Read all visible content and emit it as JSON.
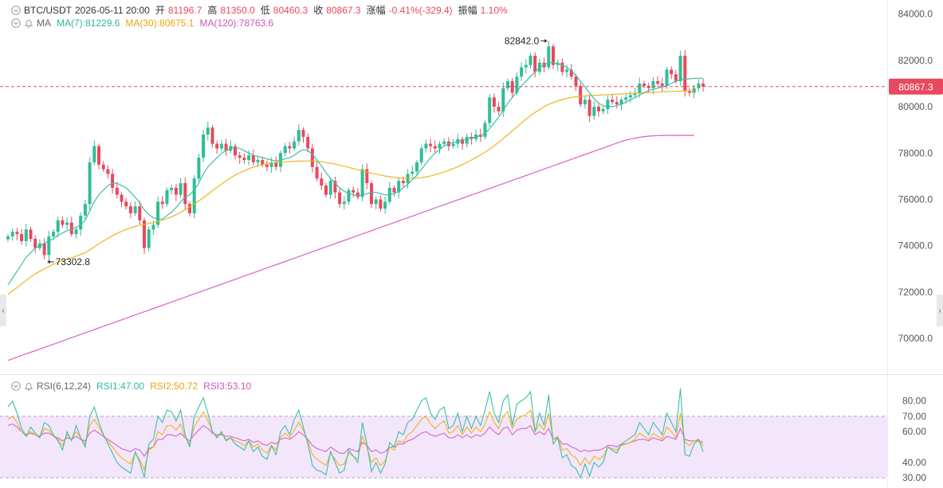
{
  "header": {
    "symbol": "BTC/USDT",
    "datetime": "2026-05-11 20:00",
    "open_label": "开",
    "open": "81196.7",
    "high_label": "高",
    "high": "81350.0",
    "low_label": "低",
    "low": "80460.3",
    "close_label": "收",
    "close": "80867.3",
    "change_label": "涨幅",
    "change": "-0.41%(-329.4)",
    "amp_label": "振幅",
    "amp": "1.10%"
  },
  "ma_legend": {
    "label": "MA",
    "ma7": "MA(7):81229.6",
    "ma30": "MA(30):80675.1",
    "ma120": "MA(120):78763.6"
  },
  "rsi_legend": {
    "label": "RSI(6,12,24)",
    "rsi1": "RSI1:47.00",
    "rsi2": "RSI2:50.72",
    "rsi3": "RSI3:53.10"
  },
  "annotations": {
    "high": "82842.0",
    "low": "73302.8"
  },
  "price_marker": "80867.3",
  "colors": {
    "up": "#2fbd97",
    "down": "#e8495e",
    "ma7": "#3bc0a8",
    "ma30": "#f0b31e",
    "ma120": "#d565c8",
    "rsi1": "#3bc0a8",
    "rsi2": "#f0b31e",
    "rsi3": "#d565c8",
    "rsi_band": "#f3e6fb",
    "marker": "#e8495e"
  },
  "chart_data": [
    {
      "type": "candlestick",
      "title": "BTC/USDT",
      "ylim": [
        68800,
        84400
      ],
      "y_ticks": [
        "84000.0",
        "82000.0",
        "80000.0",
        "78000.0",
        "76000.0",
        "74000.0",
        "72000.0",
        "70000.0"
      ],
      "y_tick_values": [
        84000,
        82000,
        80000,
        78000,
        76000,
        74000,
        72000,
        70000
      ],
      "current_price": 80867.3,
      "high_annotation": 82842.0,
      "low_annotation": 73302.8,
      "close": [
        74400,
        74600,
        74500,
        74200,
        74700,
        74300,
        73900,
        74100,
        73600,
        74400,
        74600,
        75100,
        74900,
        75000,
        74500,
        74700,
        75300,
        75800,
        77600,
        78300,
        77500,
        77300,
        77100,
        76500,
        76200,
        75900,
        75700,
        75400,
        75700,
        75100,
        73900,
        74700,
        74900,
        75900,
        75800,
        76400,
        76500,
        76200,
        76700,
        75800,
        75400,
        76900,
        77800,
        78800,
        79100,
        78400,
        78200,
        78400,
        78100,
        78300,
        77900,
        77800,
        77700,
        77900,
        77600,
        77700,
        77500,
        77400,
        77600,
        77400,
        78000,
        78300,
        78200,
        78500,
        79000,
        78700,
        78200,
        77400,
        76900,
        76600,
        76200,
        76800,
        76300,
        75800,
        75900,
        76400,
        76300,
        76100,
        77300,
        76700,
        75800,
        76000,
        75600,
        75900,
        76500,
        76300,
        76800,
        76700,
        77100,
        77200,
        77600,
        78200,
        78400,
        78300,
        78200,
        78400,
        78500,
        78300,
        78400,
        78600,
        78400,
        78700,
        78600,
        78800,
        78700,
        79300,
        80400,
        80000,
        79800,
        80800,
        81100,
        80600,
        81300,
        81700,
        81800,
        82200,
        81500,
        81900,
        81700,
        82600,
        81800,
        81900,
        81500,
        81600,
        81300,
        80900,
        80100,
        80300,
        79600,
        80000,
        79800,
        79900,
        80300,
        80200,
        80100,
        80300,
        80400,
        80500,
        80600,
        81000,
        80900,
        80800,
        81100,
        81000,
        80900,
        81600,
        81400,
        81100,
        82200,
        80700,
        80600,
        80800,
        81000,
        80867.3
      ],
      "ma7": [
        72300,
        72600,
        72900,
        73200,
        73500,
        73700,
        73900,
        74000,
        74100,
        74200,
        74300,
        74450,
        74550,
        74650,
        74700,
        74800,
        74900,
        75100,
        75500,
        75900,
        76200,
        76400,
        76600,
        76700,
        76700,
        76600,
        76500,
        76300,
        76100,
        75850,
        75550,
        75350,
        75200,
        75150,
        75150,
        75300,
        75450,
        75650,
        75900,
        76100,
        76200,
        76400,
        76700,
        77100,
        77400,
        77600,
        77800,
        78000,
        78100,
        78200,
        78250,
        78200,
        78100,
        78000,
        77900,
        77850,
        77800,
        77750,
        77700,
        77650,
        77700,
        77750,
        77800,
        77900,
        78050,
        78150,
        78100,
        77950,
        77700,
        77450,
        77150,
        76900,
        76700,
        76500,
        76350,
        76250,
        76200,
        76150,
        76200,
        76250,
        76300,
        76300,
        76250,
        76200,
        76200,
        76250,
        76350,
        76500,
        76650,
        76850,
        77050,
        77300,
        77550,
        77800,
        78000,
        78150,
        78300,
        78400,
        78450,
        78500,
        78550,
        78600,
        78650,
        78700,
        78750,
        78850,
        79050,
        79300,
        79550,
        79850,
        80150,
        80400,
        80650,
        80900,
        81100,
        81300,
        81500,
        81700,
        81800,
        81900,
        81900,
        81850,
        81800,
        81700,
        81550,
        81350,
        81100,
        80850,
        80600,
        80350,
        80150,
        80050,
        80000,
        80000,
        80050,
        80100,
        80200,
        80300,
        80400,
        80500,
        80600,
        80700,
        80750,
        80800,
        80850,
        80900,
        81000,
        81100,
        81150,
        81200,
        81200,
        81230,
        81229.6,
        81229.6
      ],
      "ma30": [
        71900,
        72050,
        72200,
        72350,
        72500,
        72650,
        72780,
        72900,
        73000,
        73100,
        73200,
        73280,
        73350,
        73420,
        73480,
        73550,
        73620,
        73700,
        73820,
        73950,
        74080,
        74200,
        74320,
        74430,
        74530,
        74620,
        74700,
        74770,
        74830,
        74880,
        74920,
        74960,
        75000,
        75050,
        75100,
        75170,
        75250,
        75340,
        75450,
        75560,
        75680,
        75800,
        75930,
        76070,
        76220,
        76370,
        76520,
        76660,
        76800,
        76930,
        77050,
        77150,
        77240,
        77320,
        77390,
        77450,
        77500,
        77540,
        77570,
        77590,
        77610,
        77620,
        77630,
        77640,
        77650,
        77660,
        77660,
        77650,
        77640,
        77620,
        77590,
        77560,
        77520,
        77480,
        77430,
        77380,
        77330,
        77280,
        77230,
        77180,
        77130,
        77090,
        77050,
        77010,
        76980,
        76950,
        76930,
        76920,
        76910,
        76910,
        76920,
        76940,
        76970,
        77010,
        77060,
        77120,
        77180,
        77250,
        77330,
        77410,
        77500,
        77600,
        77700,
        77810,
        77920,
        78040,
        78170,
        78310,
        78460,
        78620,
        78790,
        78960,
        79130,
        79300,
        79460,
        79610,
        79750,
        79880,
        80000,
        80100,
        80180,
        80250,
        80310,
        80360,
        80400,
        80430,
        80450,
        80470,
        80480,
        80490,
        80500,
        80510,
        80520,
        80530,
        80540,
        80550,
        80560,
        80570,
        80580,
        80590,
        80600,
        80610,
        80620,
        80630,
        80640,
        80650,
        80660,
        80665,
        80670,
        80672,
        80675.1,
        80675.1
      ],
      "ma120": [
        69050,
        69120,
        69190,
        69260,
        69330,
        69400,
        69470,
        69540,
        69610,
        69680,
        69750,
        69820,
        69890,
        69960,
        70030,
        70100,
        70170,
        70240,
        70310,
        70380,
        70450,
        70520,
        70590,
        70660,
        70730,
        70800,
        70870,
        70940,
        71010,
        71080,
        71150,
        71220,
        71290,
        71360,
        71430,
        71500,
        71570,
        71640,
        71710,
        71780,
        71850,
        71920,
        71990,
        72060,
        72130,
        72200,
        72270,
        72340,
        72410,
        72480,
        72550,
        72620,
        72690,
        72760,
        72830,
        72900,
        72970,
        73040,
        73110,
        73180,
        73250,
        73320,
        73390,
        73460,
        73530,
        73600,
        73670,
        73740,
        73810,
        73880,
        73950,
        74020,
        74090,
        74160,
        74230,
        74300,
        74370,
        74440,
        74510,
        74580,
        74650,
        74720,
        74790,
        74860,
        74930,
        75000,
        75070,
        75140,
        75210,
        75280,
        75350,
        75420,
        75490,
        75560,
        75630,
        75700,
        75770,
        75840,
        75910,
        75980,
        76050,
        76120,
        76190,
        76260,
        76330,
        76400,
        76470,
        76540,
        76610,
        76680,
        76750,
        76820,
        76890,
        76960,
        77030,
        77100,
        77170,
        77240,
        77310,
        77380,
        77450,
        77520,
        77590,
        77660,
        77730,
        77800,
        77870,
        77940,
        78010,
        78080,
        78150,
        78220,
        78290,
        78360,
        78430,
        78500,
        78560,
        78600,
        78640,
        78680,
        78710,
        78730,
        78745,
        78755,
        78760,
        78762,
        78763,
        78763.6,
        78763.6,
        78763.6,
        78763.6,
        78763.6
      ]
    },
    {
      "type": "line",
      "title": "RSI(6,12,24)",
      "ylim": [
        27,
        87
      ],
      "y_ticks": [
        "80.00",
        "70.00",
        "60.00",
        "40.00",
        "30.00"
      ],
      "y_tick_values": [
        80,
        70,
        60,
        40,
        30
      ],
      "band": [
        30,
        70
      ],
      "series": [
        {
          "name": "RSI1",
          "values": [
            76,
            80,
            72,
            62,
            57,
            63,
            59,
            56,
            66,
            64,
            58,
            54,
            48,
            60,
            54,
            64,
            56,
            50,
            70,
            76,
            66,
            58,
            52,
            46,
            40,
            37,
            35,
            33,
            47,
            40,
            30,
            52,
            55,
            70,
            66,
            74,
            73,
            67,
            74,
            58,
            50,
            70,
            76,
            82,
            72,
            60,
            56,
            60,
            54,
            56,
            52,
            50,
            48,
            54,
            47,
            50,
            44,
            42,
            51,
            45,
            60,
            64,
            58,
            68,
            74,
            63,
            52,
            38,
            35,
            34,
            32,
            47,
            40,
            33,
            35,
            48,
            44,
            40,
            66,
            52,
            34,
            40,
            33,
            39,
            53,
            50,
            60,
            58,
            66,
            68,
            74,
            80,
            82,
            72,
            68,
            74,
            76,
            62,
            64,
            72,
            60,
            70,
            62,
            70,
            64,
            74,
            86,
            72,
            66,
            80,
            84,
            64,
            78,
            80,
            82,
            86,
            60,
            72,
            64,
            84,
            52,
            56,
            43,
            45,
            38,
            36,
            30,
            39,
            31,
            40,
            37,
            40,
            50,
            48,
            46,
            52,
            54,
            56,
            58,
            66,
            62,
            58,
            66,
            62,
            58,
            72,
            66,
            60,
            88,
            45,
            44,
            52,
            55,
            47
          ]
        },
        {
          "name": "RSI2",
          "values": [
            68,
            70,
            66,
            60,
            57,
            60,
            58,
            56,
            62,
            61,
            57,
            55,
            51,
            58,
            55,
            60,
            56,
            52,
            64,
            68,
            63,
            58,
            54,
            50,
            46,
            43,
            41,
            39,
            46,
            42,
            35,
            48,
            50,
            60,
            58,
            64,
            64,
            61,
            65,
            56,
            52,
            63,
            68,
            73,
            67,
            60,
            57,
            59,
            55,
            56,
            54,
            53,
            51,
            54,
            50,
            52,
            48,
            46,
            51,
            48,
            56,
            59,
            56,
            61,
            66,
            61,
            54,
            45,
            42,
            40,
            38,
            46,
            42,
            38,
            39,
            46,
            44,
            42,
            57,
            50,
            40,
            43,
            38,
            41,
            50,
            48,
            54,
            53,
            58,
            60,
            64,
            68,
            70,
            65,
            62,
            65,
            67,
            59,
            60,
            64,
            58,
            63,
            59,
            63,
            60,
            65,
            73,
            66,
            62,
            70,
            73,
            62,
            68,
            70,
            71,
            74,
            60,
            65,
            61,
            72,
            55,
            57,
            48,
            49,
            45,
            43,
            38,
            43,
            39,
            44,
            42,
            44,
            50,
            49,
            48,
            51,
            52,
            53,
            55,
            59,
            57,
            55,
            59,
            57,
            55,
            63,
            60,
            56,
            72,
            53,
            51,
            54,
            55,
            50.72
          ]
        },
        {
          "name": "RSI3",
          "values": [
            64,
            65,
            63,
            60,
            58,
            59,
            58,
            57,
            59,
            59,
            57,
            56,
            54,
            56,
            55,
            57,
            55,
            54,
            59,
            61,
            59,
            57,
            55,
            53,
            51,
            49,
            48,
            47,
            49,
            48,
            44,
            49,
            50,
            55,
            55,
            58,
            58,
            57,
            59,
            56,
            54,
            58,
            61,
            64,
            62,
            59,
            58,
            58,
            57,
            57,
            56,
            55,
            54,
            55,
            53,
            54,
            52,
            51,
            53,
            52,
            55,
            56,
            55,
            57,
            60,
            58,
            55,
            51,
            49,
            48,
            47,
            50,
            48,
            46,
            46,
            49,
            48,
            47,
            53,
            51,
            47,
            48,
            46,
            47,
            50,
            50,
            52,
            52,
            54,
            55,
            57,
            59,
            60,
            58,
            57,
            58,
            59,
            56,
            56,
            58,
            56,
            58,
            56,
            58,
            57,
            59,
            63,
            60,
            58,
            62,
            63,
            58,
            61,
            62,
            62,
            64,
            58,
            60,
            58,
            62,
            55,
            56,
            52,
            52,
            50,
            49,
            47,
            48,
            47,
            48,
            48,
            49,
            51,
            51,
            50,
            52,
            52,
            53,
            54,
            55,
            55,
            54,
            56,
            55,
            54,
            57,
            56,
            55,
            62,
            55,
            54,
            54,
            54,
            53.1
          ]
        }
      ]
    }
  ]
}
